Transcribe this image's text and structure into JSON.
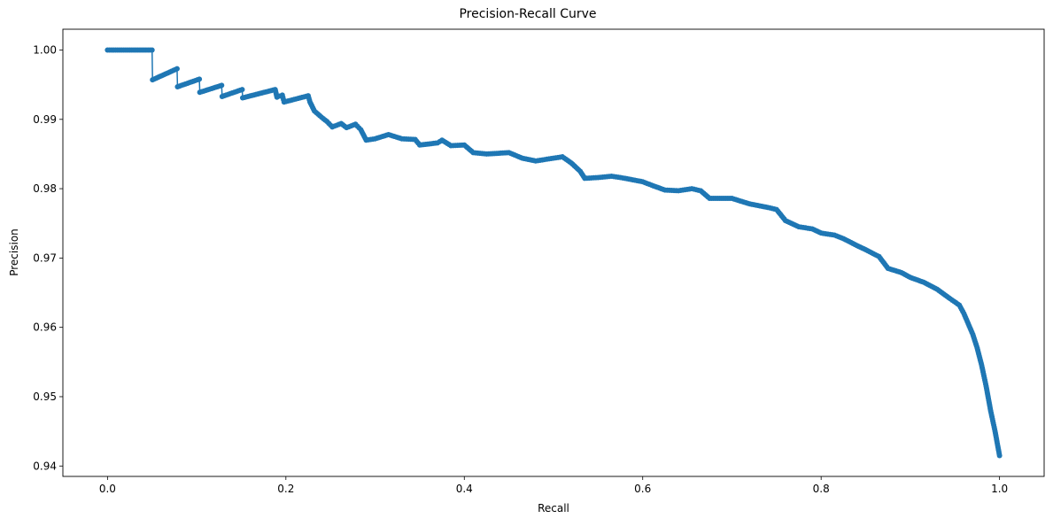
{
  "chart_data": {
    "type": "scatter",
    "title": "Precision-Recall Curve",
    "xlabel": "Recall",
    "ylabel": "Precision",
    "xlim": [
      -0.05,
      1.05
    ],
    "ylim": [
      0.9385,
      1.003
    ],
    "xticks": [
      0.0,
      0.2,
      0.4,
      0.6,
      0.8,
      1.0
    ],
    "xtick_labels": [
      "0.0",
      "0.2",
      "0.4",
      "0.6",
      "0.8",
      "1.0"
    ],
    "yticks": [
      0.94,
      0.95,
      0.96,
      0.97,
      0.98,
      0.99,
      1.0
    ],
    "ytick_labels": [
      "0.94",
      "0.95",
      "0.96",
      "0.97",
      "0.98",
      "0.99",
      "1.00"
    ],
    "grid": false,
    "series": [
      {
        "name": "precision-recall",
        "color": "#1f77b4",
        "connected": true,
        "points": [
          [
            0.0,
            1.0
          ],
          [
            0.05,
            1.0
          ],
          [
            0.0505,
            0.9957
          ],
          [
            0.078,
            0.9973
          ],
          [
            0.0785,
            0.9947
          ],
          [
            0.103,
            0.9958
          ],
          [
            0.1035,
            0.9939
          ],
          [
            0.128,
            0.9949
          ],
          [
            0.1285,
            0.9933
          ],
          [
            0.151,
            0.9943
          ],
          [
            0.1515,
            0.9931
          ],
          [
            0.188,
            0.9943
          ],
          [
            0.19,
            0.9932
          ],
          [
            0.196,
            0.9935
          ],
          [
            0.198,
            0.9925
          ],
          [
            0.225,
            0.9934
          ],
          [
            0.227,
            0.9925
          ],
          [
            0.232,
            0.9912
          ],
          [
            0.24,
            0.9903
          ],
          [
            0.246,
            0.9897
          ],
          [
            0.252,
            0.9889
          ],
          [
            0.262,
            0.9894
          ],
          [
            0.268,
            0.9888
          ],
          [
            0.278,
            0.9893
          ],
          [
            0.284,
            0.9885
          ],
          [
            0.29,
            0.987
          ],
          [
            0.3,
            0.9872
          ],
          [
            0.315,
            0.9878
          ],
          [
            0.33,
            0.9872
          ],
          [
            0.345,
            0.9871
          ],
          [
            0.35,
            0.9863
          ],
          [
            0.37,
            0.9866
          ],
          [
            0.375,
            0.987
          ],
          [
            0.385,
            0.9862
          ],
          [
            0.4,
            0.9863
          ],
          [
            0.41,
            0.9852
          ],
          [
            0.425,
            0.985
          ],
          [
            0.45,
            0.9852
          ],
          [
            0.465,
            0.9844
          ],
          [
            0.48,
            0.984
          ],
          [
            0.495,
            0.9843
          ],
          [
            0.51,
            0.9846
          ],
          [
            0.52,
            0.9837
          ],
          [
            0.53,
            0.9825
          ],
          [
            0.535,
            0.9815
          ],
          [
            0.55,
            0.9816
          ],
          [
            0.565,
            0.9818
          ],
          [
            0.58,
            0.9815
          ],
          [
            0.6,
            0.981
          ],
          [
            0.61,
            0.9805
          ],
          [
            0.625,
            0.9798
          ],
          [
            0.64,
            0.9797
          ],
          [
            0.655,
            0.98
          ],
          [
            0.665,
            0.9797
          ],
          [
            0.675,
            0.9786
          ],
          [
            0.7,
            0.9786
          ],
          [
            0.72,
            0.9778
          ],
          [
            0.74,
            0.9773
          ],
          [
            0.75,
            0.977
          ],
          [
            0.76,
            0.9754
          ],
          [
            0.775,
            0.9745
          ],
          [
            0.79,
            0.9742
          ],
          [
            0.8,
            0.9736
          ],
          [
            0.815,
            0.9733
          ],
          [
            0.825,
            0.9728
          ],
          [
            0.84,
            0.9718
          ],
          [
            0.85,
            0.9712
          ],
          [
            0.865,
            0.9702
          ],
          [
            0.875,
            0.9685
          ],
          [
            0.89,
            0.9679
          ],
          [
            0.9,
            0.9672
          ],
          [
            0.915,
            0.9665
          ],
          [
            0.93,
            0.9655
          ],
          [
            0.945,
            0.9641
          ],
          [
            0.955,
            0.9632
          ],
          [
            0.96,
            0.962
          ],
          [
            0.965,
            0.9605
          ],
          [
            0.97,
            0.959
          ],
          [
            0.975,
            0.957
          ],
          [
            0.98,
            0.9545
          ],
          [
            0.985,
            0.9515
          ],
          [
            0.99,
            0.948
          ],
          [
            0.995,
            0.945
          ],
          [
            1.0,
            0.9415
          ]
        ]
      }
    ]
  }
}
